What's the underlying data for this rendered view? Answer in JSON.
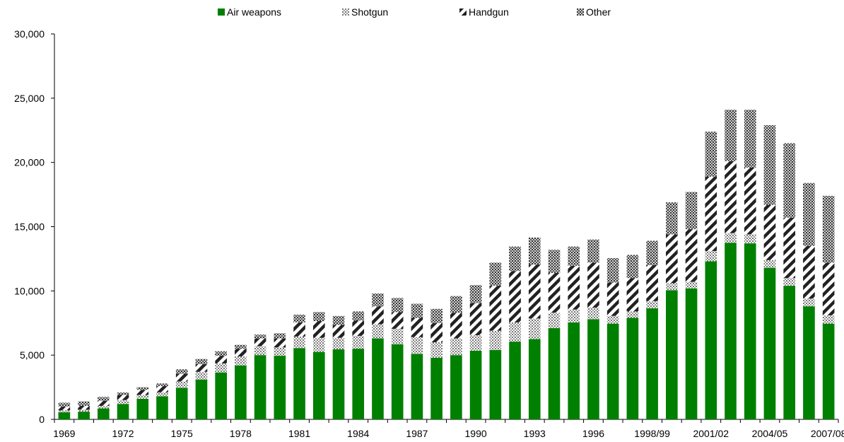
{
  "chart_data": {
    "type": "bar",
    "stacked": true,
    "categories": [
      "1969",
      "1970",
      "1971",
      "1972",
      "1973",
      "1974",
      "1975",
      "1976",
      "1977",
      "1978",
      "1979",
      "1980",
      "1981",
      "1982",
      "1983",
      "1984",
      "1985",
      "1986",
      "1987",
      "1988",
      "1989",
      "1990",
      "1991",
      "1992",
      "1993",
      "1994",
      "1995",
      "1996",
      "1997",
      "1998",
      "1998/99",
      "1999/00",
      "2000/01",
      "2001/02",
      "2002/03",
      "2003/04",
      "2004/05",
      "2005/06",
      "2006/07",
      "2007/08"
    ],
    "x_tick_labels_shown": [
      "1969",
      "1972",
      "1975",
      "1978",
      "1981",
      "1984",
      "1987",
      "1990",
      "1993",
      "1996",
      "1998/99",
      "2001/02",
      "2004/05",
      "2007/08"
    ],
    "series": [
      {
        "name": "Air weapons",
        "color": "#008000",
        "pattern": "solid",
        "values": [
          550,
          600,
          850,
          1200,
          1600,
          1800,
          2450,
          3100,
          3650,
          4200,
          5000,
          4950,
          5550,
          5250,
          5450,
          5500,
          6300,
          5850,
          5100,
          4800,
          5000,
          5350,
          5400,
          6050,
          6250,
          7100,
          7550,
          7800,
          7450,
          7900,
          8650,
          10050,
          10200,
          12300,
          13750,
          13700,
          11800,
          10400,
          8800,
          7450
        ]
      },
      {
        "name": "Shotgun",
        "color": "#777777",
        "pattern": "dots",
        "values": [
          150,
          150,
          200,
          300,
          300,
          300,
          500,
          600,
          700,
          700,
          700,
          650,
          900,
          1100,
          900,
          1000,
          1100,
          1200,
          1300,
          1200,
          1300,
          1200,
          1500,
          1500,
          1600,
          1200,
          1000,
          900,
          600,
          500,
          550,
          550,
          500,
          800,
          750,
          700,
          600,
          600,
          600,
          650
        ]
      },
      {
        "name": "Handgun",
        "color": "#333333",
        "pattern": "diagonal-stripes",
        "values": [
          300,
          300,
          400,
          400,
          400,
          500,
          600,
          600,
          600,
          600,
          600,
          700,
          1100,
          1300,
          1000,
          1200,
          1400,
          1300,
          1500,
          1500,
          2000,
          2500,
          3500,
          4000,
          4200,
          3100,
          3400,
          3500,
          2600,
          2600,
          2800,
          3800,
          4100,
          5800,
          5600,
          5200,
          4300,
          4700,
          4100,
          4100
        ]
      },
      {
        "name": "Other",
        "color": "#444444",
        "pattern": "crosshatch",
        "values": [
          300,
          350,
          300,
          200,
          200,
          200,
          350,
          400,
          350,
          300,
          300,
          400,
          600,
          700,
          700,
          700,
          1000,
          1100,
          1100,
          1100,
          1300,
          1400,
          1800,
          1900,
          2100,
          1800,
          1500,
          1800,
          1900,
          1800,
          1900,
          2500,
          2900,
          3500,
          4000,
          4500,
          6200,
          5800,
          4900,
          5200
        ]
      }
    ],
    "ylim": [
      0,
      30000
    ],
    "y_ticks": [
      "0",
      "5,000",
      "10,000",
      "15,000",
      "20,000",
      "25,000",
      "30,000"
    ],
    "y_tick_values": [
      0,
      5000,
      10000,
      15000,
      20000,
      25000,
      30000
    ],
    "legend_position": "top",
    "grid": false
  }
}
